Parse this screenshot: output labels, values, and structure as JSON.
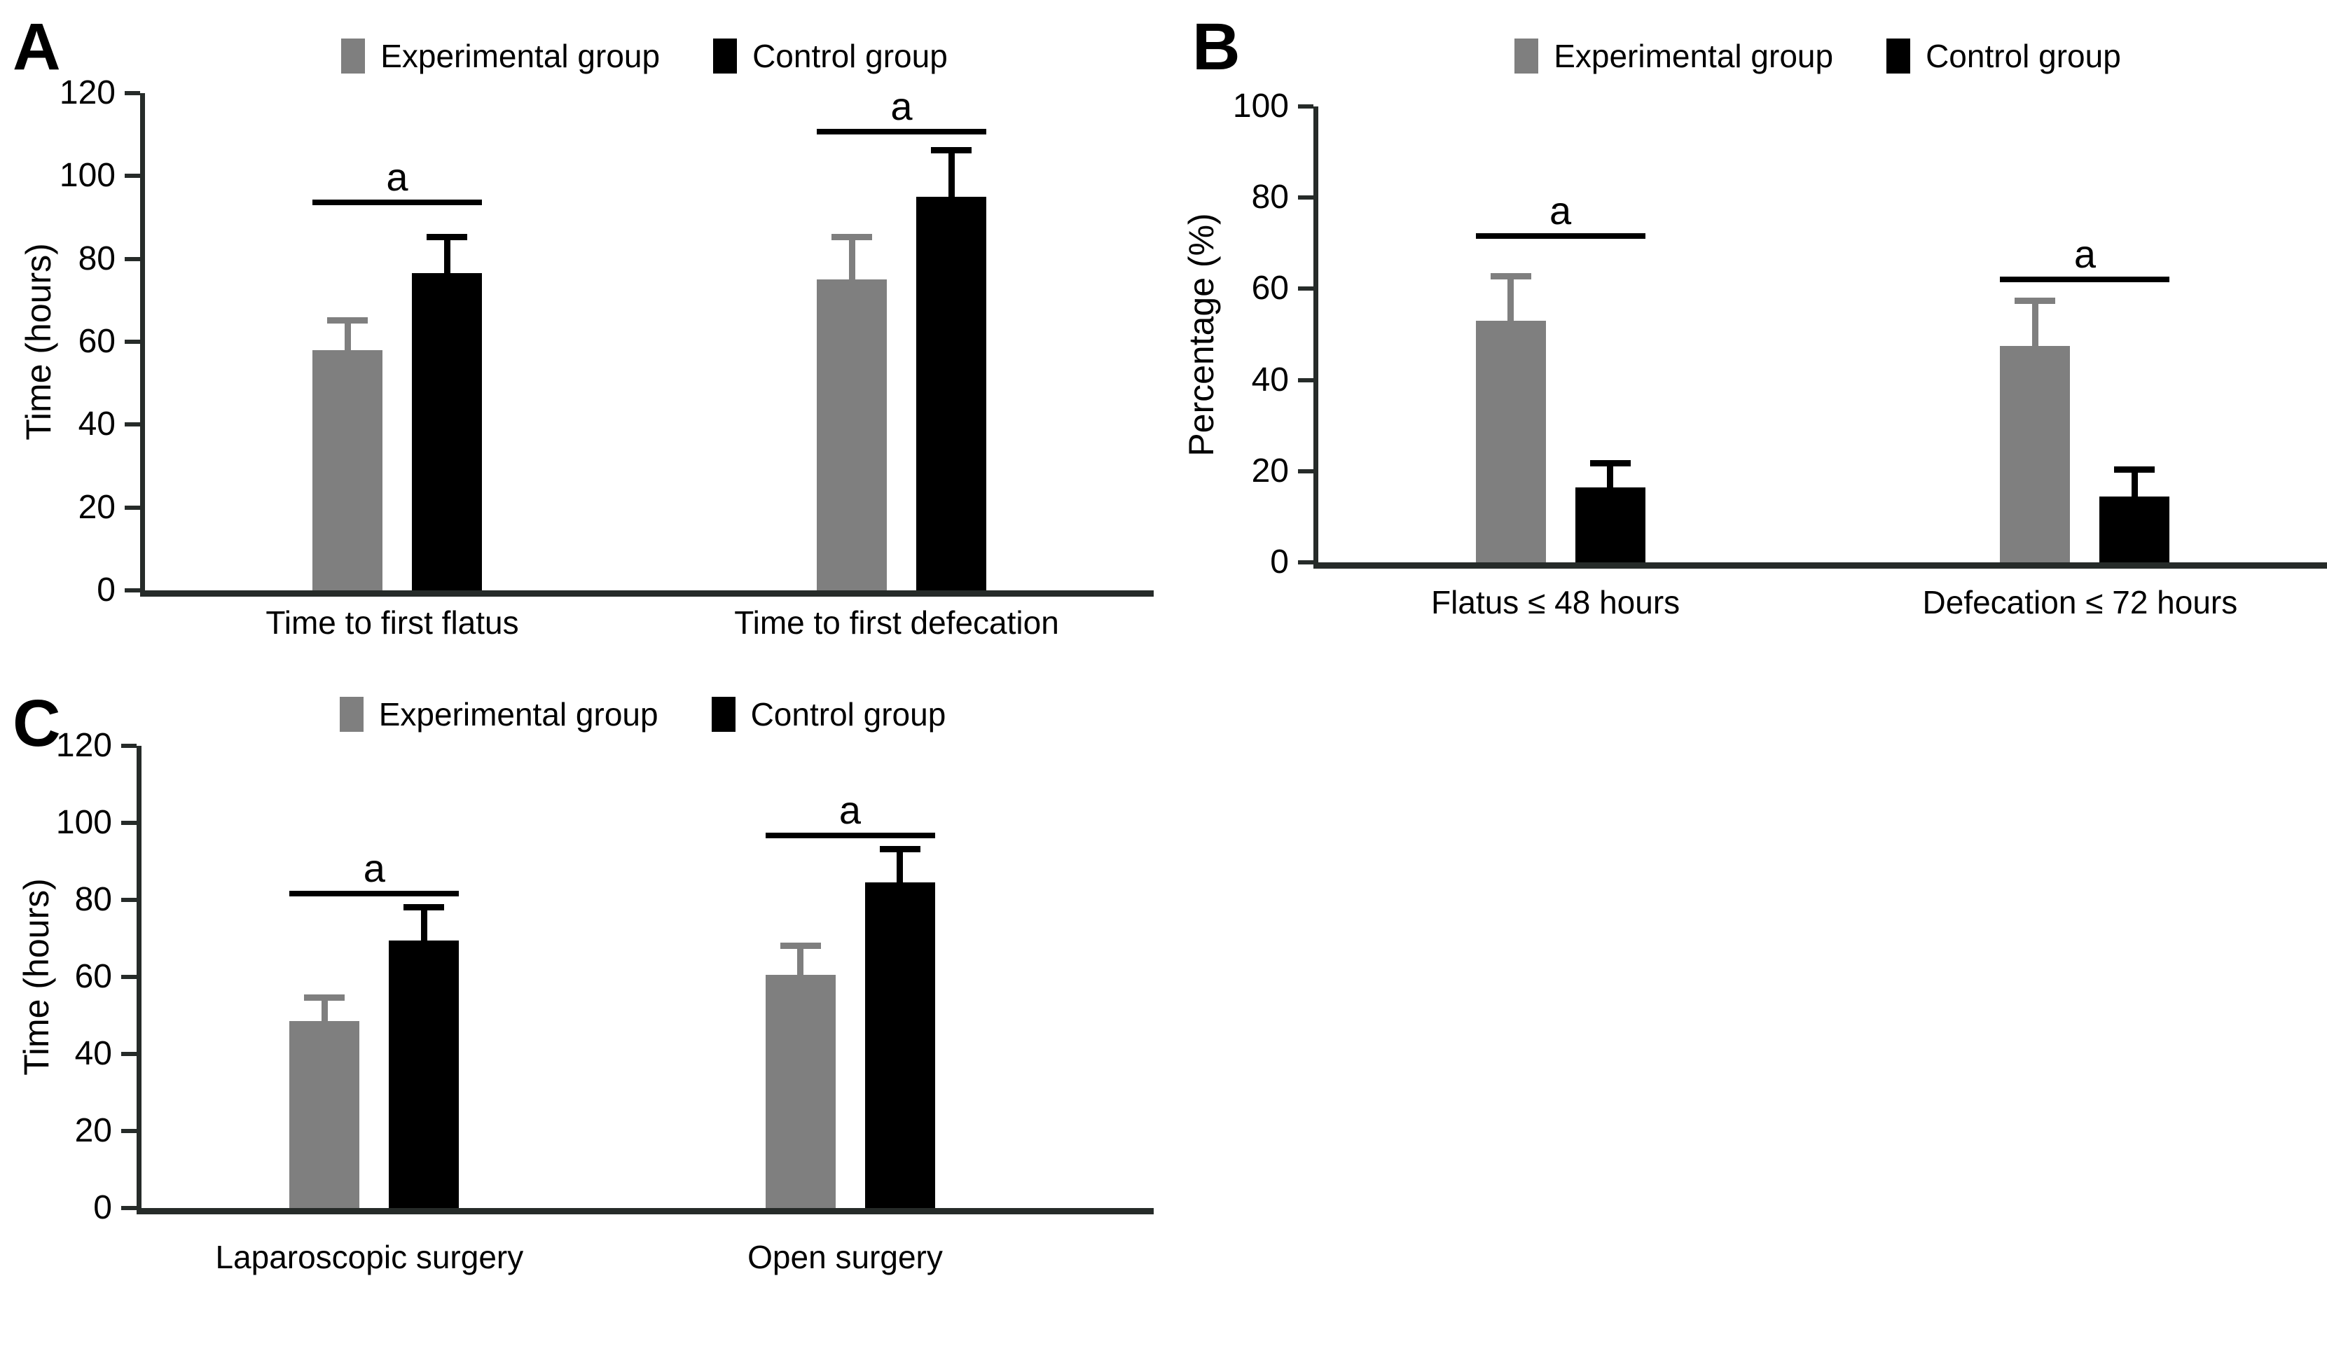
{
  "figure": {
    "background": "#ffffff",
    "colors": {
      "experimental": "#7f7f7f",
      "control": "#000000",
      "axis": "#262b29",
      "bracket": "#000000",
      "text": "#000000"
    },
    "legend": {
      "experimental_label": "Experimental group",
      "control_label": "Control group"
    }
  },
  "chart_data": [
    {
      "panel_label": "A",
      "type": "bar",
      "title": "",
      "xlabel": "",
      "ylabel": "Time (hours)",
      "ylim": [
        0,
        120
      ],
      "yticks": [
        0,
        20,
        40,
        60,
        80,
        100,
        120
      ],
      "grid": false,
      "legend_position": "top-center",
      "categories": [
        "Time to first flatus",
        "Time to first defecation"
      ],
      "series": [
        {
          "name": "Experimental group",
          "values": [
            58,
            75
          ],
          "errors": [
            8,
            11
          ]
        },
        {
          "name": "Control group",
          "values": [
            76.5,
            95
          ],
          "errors": [
            9.5,
            12
          ]
        }
      ],
      "significance": [
        {
          "label": "a",
          "y": 93
        },
        {
          "label": "a",
          "y": 110
        }
      ],
      "group_centers_pct": [
        25,
        75
      ]
    },
    {
      "panel_label": "B",
      "type": "bar",
      "title": "",
      "xlabel": "",
      "ylabel": "Percentage (%)",
      "ylim": [
        0,
        100
      ],
      "yticks": [
        0,
        20,
        40,
        60,
        80,
        100
      ],
      "grid": false,
      "legend_position": "top-center",
      "categories": [
        "Flatus ≤ 48 hours",
        "Defecation ≤ 72 hours"
      ],
      "series": [
        {
          "name": "Experimental group",
          "values": [
            53,
            47.5
          ],
          "errors": [
            10.5,
            10.5
          ]
        },
        {
          "name": "Control group",
          "values": [
            16.5,
            14.5
          ],
          "errors": [
            6,
            6.5
          ]
        }
      ],
      "significance": [
        {
          "label": "a",
          "y": 71
        },
        {
          "label": "a",
          "y": 61.5
        }
      ],
      "group_centers_pct": [
        24,
        76
      ]
    },
    {
      "panel_label": "C",
      "type": "bar",
      "title": "",
      "xlabel": "",
      "ylabel": "Time (hours)",
      "ylim": [
        0,
        120
      ],
      "yticks": [
        0,
        20,
        40,
        60,
        80,
        100,
        120
      ],
      "grid": false,
      "legend_position": "top-center",
      "categories": [
        "Laparoscopic surgery",
        "Open surgery"
      ],
      "series": [
        {
          "name": "Experimental group",
          "values": [
            48.5,
            60.5
          ],
          "errors": [
            7,
            8.5
          ]
        },
        {
          "name": "Control group",
          "values": [
            69.5,
            84.5
          ],
          "errors": [
            9.5,
            9.5
          ]
        }
      ],
      "significance": [
        {
          "label": "a",
          "y": 81
        },
        {
          "label": "a",
          "y": 96
        }
      ],
      "group_centers_pct": [
        23,
        70
      ]
    }
  ]
}
